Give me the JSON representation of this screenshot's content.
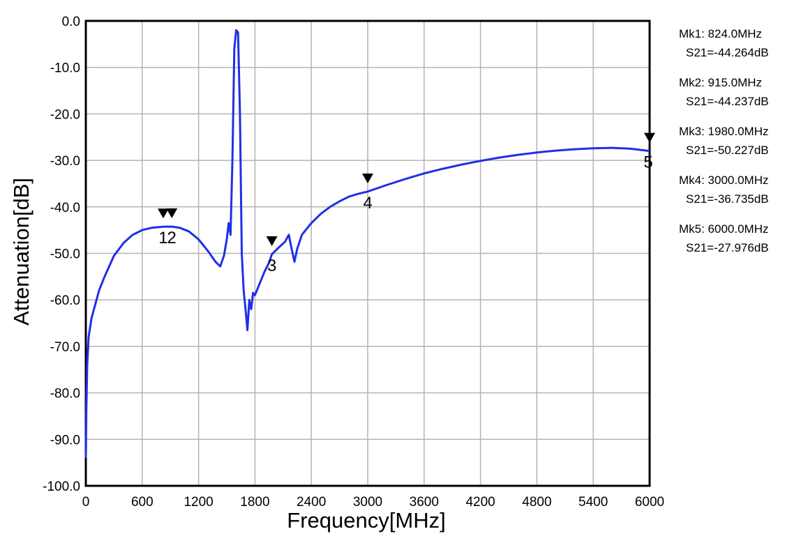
{
  "colors": {
    "trace": "#1f2fe8",
    "grid": "#b4b4b4",
    "frame": "#000000",
    "marker": "#000000"
  },
  "chart_data": {
    "type": "line",
    "title": "",
    "xlabel": "Frequency[MHz]",
    "ylabel": "Attenuation[dB]",
    "xlim": [
      0,
      6000
    ],
    "ylim": [
      -100,
      0
    ],
    "grid": true,
    "x_ticks": [
      0,
      600,
      1200,
      1800,
      2400,
      3000,
      3600,
      4200,
      4800,
      5400,
      6000
    ],
    "x_tick_labels": [
      "0",
      "600",
      "1200",
      "1800",
      "2400",
      "3000",
      "3600",
      "4200",
      "4800",
      "5400",
      "6000"
    ],
    "y_ticks": [
      0,
      -10,
      -20,
      -30,
      -40,
      -50,
      -60,
      -70,
      -80,
      -90,
      -100
    ],
    "y_tick_labels": [
      "0.0",
      "-10.0",
      "-20.0",
      "-30.0",
      "-40.0",
      "-50.0",
      "-60.0",
      "-70.0",
      "-80.0",
      "-90.0",
      "-100.0"
    ],
    "series": [
      {
        "color": "#1f2fe8",
        "points": [
          [
            0,
            -94
          ],
          [
            5,
            -84
          ],
          [
            15,
            -74
          ],
          [
            30,
            -68
          ],
          [
            60,
            -64
          ],
          [
            100,
            -61
          ],
          [
            140,
            -58
          ],
          [
            200,
            -55
          ],
          [
            300,
            -50.5
          ],
          [
            400,
            -47.8
          ],
          [
            500,
            -46
          ],
          [
            600,
            -45
          ],
          [
            700,
            -44.5
          ],
          [
            824,
            -44.26
          ],
          [
            915,
            -44.24
          ],
          [
            1000,
            -44.5
          ],
          [
            1100,
            -45.3
          ],
          [
            1200,
            -47
          ],
          [
            1300,
            -49.5
          ],
          [
            1380,
            -51.8
          ],
          [
            1430,
            -52.8
          ],
          [
            1470,
            -50.5
          ],
          [
            1500,
            -47
          ],
          [
            1520,
            -43.5
          ],
          [
            1540,
            -46
          ],
          [
            1560,
            -30
          ],
          [
            1580,
            -6
          ],
          [
            1600,
            -2
          ],
          [
            1620,
            -2.5
          ],
          [
            1640,
            -20
          ],
          [
            1660,
            -50
          ],
          [
            1680,
            -58
          ],
          [
            1700,
            -62
          ],
          [
            1720,
            -66.5
          ],
          [
            1740,
            -60
          ],
          [
            1760,
            -62
          ],
          [
            1780,
            -58.5
          ],
          [
            1800,
            -59
          ],
          [
            1830,
            -57.5
          ],
          [
            1860,
            -56
          ],
          [
            1900,
            -54
          ],
          [
            1950,
            -52
          ],
          [
            1980,
            -50.2
          ],
          [
            2050,
            -48.8
          ],
          [
            2120,
            -47.5
          ],
          [
            2160,
            -46
          ],
          [
            2190,
            -49
          ],
          [
            2220,
            -51.8
          ],
          [
            2250,
            -49
          ],
          [
            2300,
            -46
          ],
          [
            2400,
            -43.5
          ],
          [
            2500,
            -41.5
          ],
          [
            2600,
            -40
          ],
          [
            2700,
            -38.8
          ],
          [
            2800,
            -37.8
          ],
          [
            2900,
            -37.2
          ],
          [
            3000,
            -36.7
          ],
          [
            3200,
            -35.3
          ],
          [
            3400,
            -34
          ],
          [
            3600,
            -32.8
          ],
          [
            3800,
            -31.8
          ],
          [
            4000,
            -30.9
          ],
          [
            4200,
            -30.1
          ],
          [
            4400,
            -29.4
          ],
          [
            4600,
            -28.8
          ],
          [
            4800,
            -28.3
          ],
          [
            5000,
            -27.9
          ],
          [
            5200,
            -27.6
          ],
          [
            5400,
            -27.4
          ],
          [
            5600,
            -27.3
          ],
          [
            5800,
            -27.5
          ],
          [
            6000,
            -27.98
          ]
        ]
      }
    ],
    "markers": [
      {
        "label": "1",
        "x": 824,
        "y": -44.264
      },
      {
        "label": "2",
        "x": 915,
        "y": -44.237
      },
      {
        "label": "3",
        "x": 1980,
        "y": -50.227
      },
      {
        "label": "4",
        "x": 3000,
        "y": -36.735
      },
      {
        "label": "5",
        "x": 6000,
        "y": -27.976
      }
    ],
    "marker_readouts": [
      {
        "line1": "Mk1:  824.0MHz",
        "line2": "S21=-44.264dB"
      },
      {
        "line1": "Mk2:  915.0MHz",
        "line2": "S21=-44.237dB"
      },
      {
        "line1": "Mk3: 1980.0MHz",
        "line2": "S21=-50.227dB"
      },
      {
        "line1": "Mk4: 3000.0MHz",
        "line2": "S21=-36.735dB"
      },
      {
        "line1": "Mk5: 6000.0MHz",
        "line2": "S21=-27.976dB"
      }
    ]
  }
}
